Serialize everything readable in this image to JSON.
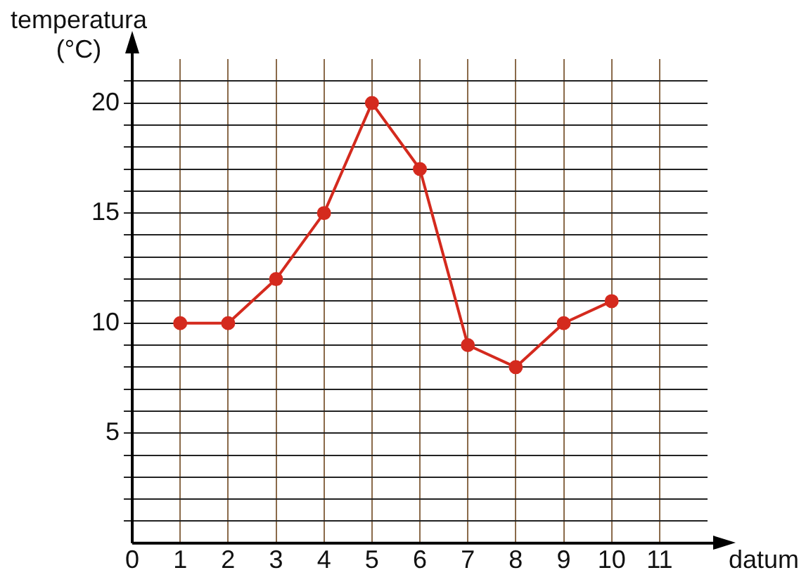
{
  "chart_data": {
    "type": "line",
    "xlabel": "datum",
    "ylabel": "temperatura (°C)",
    "x": [
      1,
      2,
      3,
      4,
      5,
      6,
      7,
      8,
      9,
      10
    ],
    "values": [
      10,
      10,
      12,
      15,
      20,
      17,
      9,
      8,
      10,
      11
    ],
    "color": "#d42a1e",
    "marker": "circle",
    "line_style": "solid",
    "grid": true,
    "xlim": [
      0,
      12
    ],
    "ylim": [
      0,
      22
    ],
    "xticks": [
      0,
      1,
      2,
      3,
      4,
      5,
      6,
      7,
      8,
      9,
      10,
      11
    ],
    "yticks": [
      {
        "value": 1,
        "label": null
      },
      {
        "value": 2,
        "label": null
      },
      {
        "value": 3,
        "label": null
      },
      {
        "value": 4,
        "label": null
      },
      5,
      {
        "value": 6,
        "label": null
      },
      {
        "value": 7,
        "label": null
      },
      {
        "value": 8,
        "label": null
      },
      {
        "value": 9,
        "label": null
      },
      10,
      {
        "value": 11,
        "label": null
      },
      {
        "value": 12,
        "label": null
      },
      {
        "value": 13,
        "label": null
      },
      {
        "value": 14,
        "label": null
      },
      15,
      {
        "value": 16,
        "label": null
      },
      {
        "value": 17,
        "label": null
      },
      {
        "value": 18,
        "label": null
      },
      {
        "value": 19,
        "label": null
      },
      20,
      {
        "value": 21,
        "label": null
      }
    ]
  }
}
